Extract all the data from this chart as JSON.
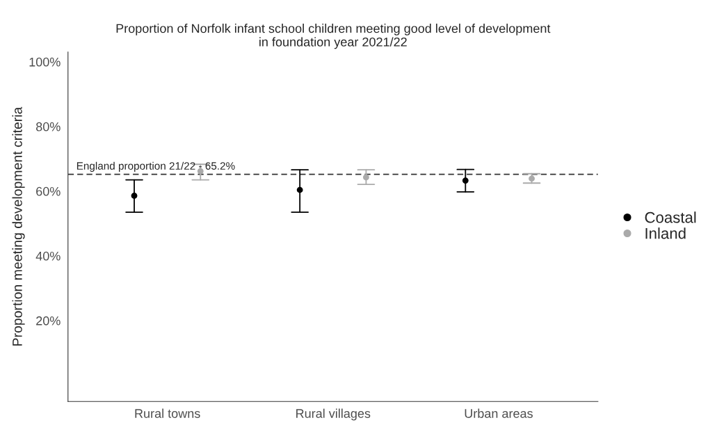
{
  "chart_data": {
    "type": "scatter",
    "title": "Proportion of Norfolk infant school children meeting good level of development\nin foundation year 2021/22",
    "ylabel": "Proportion meeting development criteria",
    "categories": [
      "Rural towns",
      "Rural villages",
      "Urban areas"
    ],
    "series": [
      {
        "name": "Coastal",
        "color": "#000000",
        "values": [
          58.6,
          60.4,
          63.3
        ],
        "errors": [
          [
            53.5,
            63.5
          ],
          [
            53.5,
            66.6
          ],
          [
            59.8,
            66.7
          ]
        ]
      },
      {
        "name": "Inland",
        "color": "#aaaaaa",
        "values": [
          66.2,
          64.3,
          63.9
        ],
        "errors": [
          [
            63.5,
            68.3
          ],
          [
            62.1,
            66.6
          ],
          [
            62.5,
            65.4
          ]
        ]
      }
    ],
    "ylim": [
      -5,
      103
    ],
    "yticks": [
      {
        "value": 20,
        "label": "20%"
      },
      {
        "value": 40,
        "label": "40%"
      },
      {
        "value": 60,
        "label": "60%"
      },
      {
        "value": 80,
        "label": "80%"
      },
      {
        "value": 100,
        "label": "100%"
      }
    ],
    "ref_lines": [
      {
        "axis": "y",
        "value": 65.2,
        "label": "England proportion 21/22 - 65.2%",
        "color": "#333333",
        "line_style": "dashed"
      }
    ],
    "grid": false,
    "legend": "right",
    "marker": "circle"
  }
}
